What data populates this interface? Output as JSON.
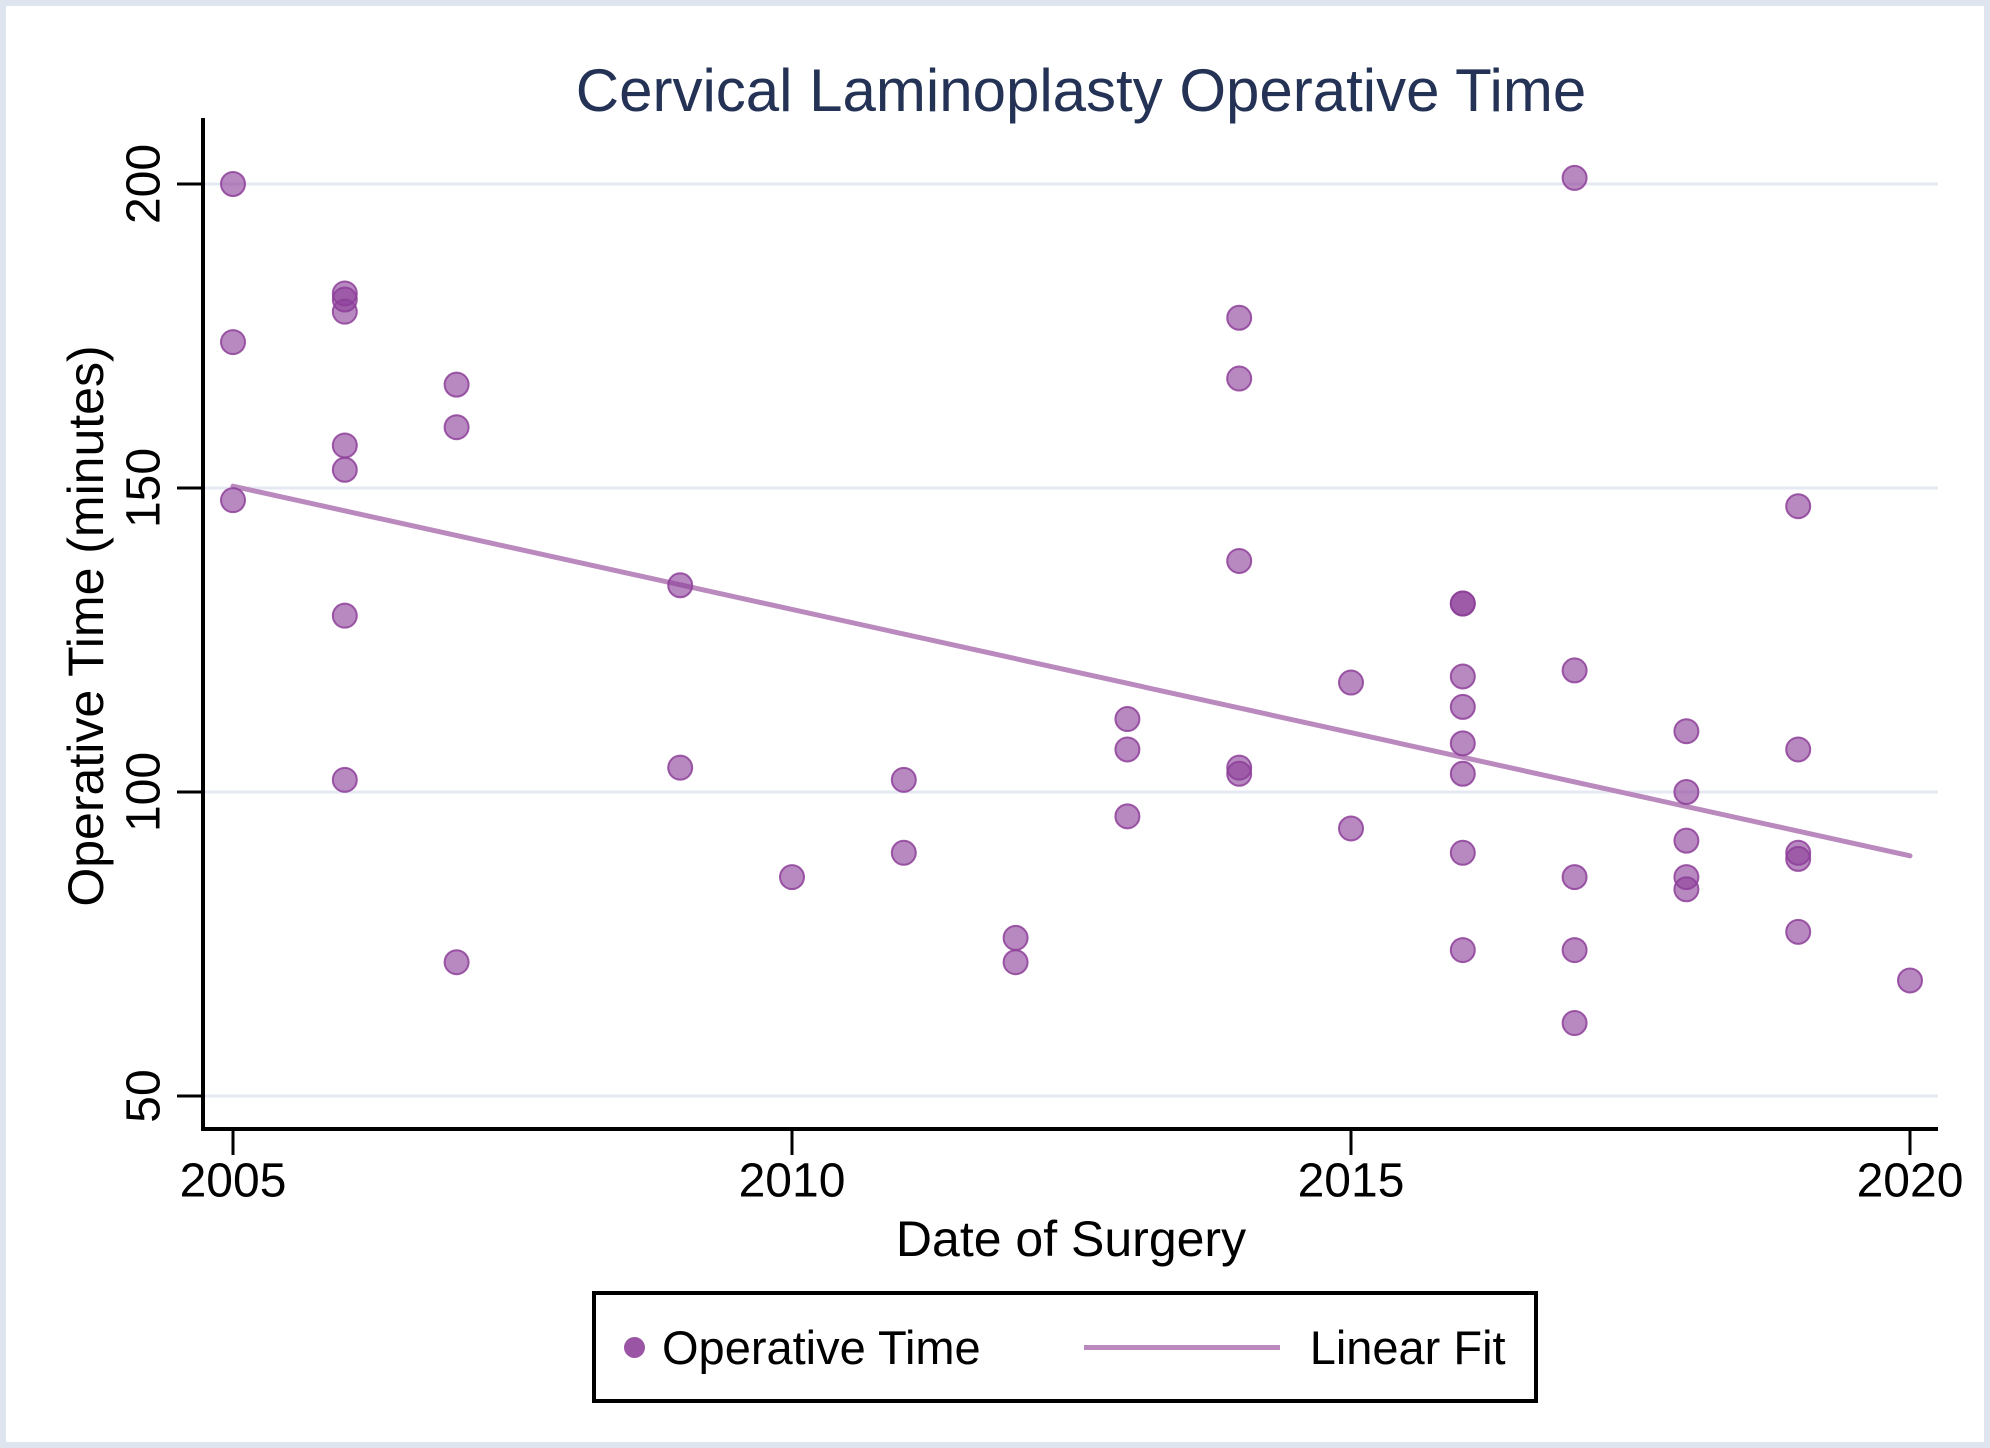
{
  "chart_data": {
    "type": "scatter",
    "title": "Cervical Laminoplasty Operative Time",
    "xlabel": "Date of Surgery",
    "ylabel": "Operative Time (minutes)",
    "xticks": [
      2005,
      2010,
      2015,
      2020
    ],
    "yticks": [
      200,
      150,
      100,
      50
    ],
    "xtick_labels": [
      "2005",
      "2010",
      "2015",
      "2020"
    ],
    "ytick_labels": [
      "200",
      "150",
      "100",
      "50"
    ],
    "xlim": [
      2004.7,
      2020.3
    ],
    "ylim": [
      44,
      208
    ],
    "grid": "horizontal gridlines at each y tick",
    "legend_position": "bottom-center",
    "legend": [
      {
        "label": "Operative Time",
        "marker": "dot"
      },
      {
        "label": "Linear Fit",
        "marker": "line"
      }
    ],
    "series": [
      {
        "name": "Operative Time",
        "type": "scatter",
        "points": [
          [
            2005,
            200
          ],
          [
            2005,
            174
          ],
          [
            2005,
            148
          ],
          [
            2006,
            182
          ],
          [
            2006,
            181
          ],
          [
            2006,
            179
          ],
          [
            2006,
            157
          ],
          [
            2006,
            153
          ],
          [
            2006,
            129
          ],
          [
            2006,
            102
          ],
          [
            2007,
            167
          ],
          [
            2007,
            160
          ],
          [
            2007,
            72
          ],
          [
            2009,
            134
          ],
          [
            2009,
            104
          ],
          [
            2010,
            86
          ],
          [
            2011,
            102
          ],
          [
            2011,
            90
          ],
          [
            2012,
            76
          ],
          [
            2012,
            72
          ],
          [
            2013,
            112
          ],
          [
            2013,
            107
          ],
          [
            2013,
            96
          ],
          [
            2014,
            178
          ],
          [
            2014,
            168
          ],
          [
            2014,
            138
          ],
          [
            2014,
            104
          ],
          [
            2014,
            103
          ],
          [
            2015,
            118
          ],
          [
            2015,
            94
          ],
          [
            2016,
            131
          ],
          [
            2016,
            131
          ],
          [
            2016,
            119
          ],
          [
            2016,
            114
          ],
          [
            2016,
            108
          ],
          [
            2016,
            103
          ],
          [
            2016,
            90
          ],
          [
            2016,
            74
          ],
          [
            2017,
            201
          ],
          [
            2017,
            120
          ],
          [
            2017,
            86
          ],
          [
            2017,
            74
          ],
          [
            2017,
            62
          ],
          [
            2018,
            110
          ],
          [
            2018,
            100
          ],
          [
            2018,
            92
          ],
          [
            2018,
            86
          ],
          [
            2018,
            84
          ],
          [
            2019,
            147
          ],
          [
            2019,
            107
          ],
          [
            2019,
            90
          ],
          [
            2019,
            89
          ],
          [
            2019,
            77
          ],
          [
            2020,
            69
          ]
        ]
      },
      {
        "name": "Linear Fit",
        "type": "line",
        "x": [
          2005,
          2020
        ],
        "y": [
          150.3,
          89.5
        ]
      }
    ],
    "colors": {
      "point_fill": "#8d3f99",
      "fit_line": "#ba8abe",
      "title_text": "#233255",
      "gridline": "#e4e9f4",
      "axis": "#000000",
      "frame": "#dfe5ef"
    }
  }
}
